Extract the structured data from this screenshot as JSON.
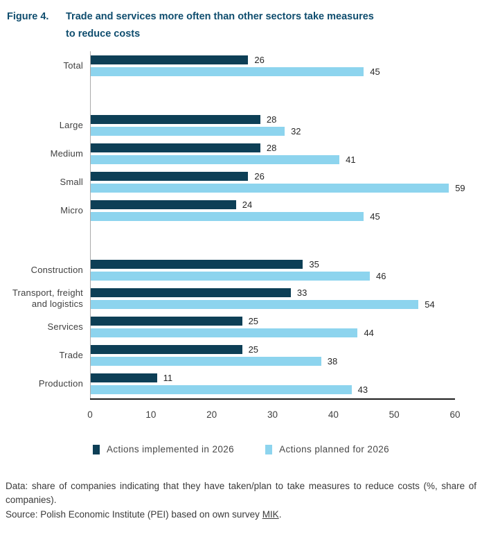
{
  "figure": {
    "label": "Figure 4.",
    "title_line1": "Trade and services more often than other sectors take measures",
    "title_line2": "to reduce costs"
  },
  "chart_data": {
    "type": "bar",
    "orientation": "horizontal",
    "title": "Trade and services more often than other sectors take measures to reduce costs",
    "xlabel": "",
    "ylabel": "",
    "xlim": [
      0,
      60
    ],
    "xticks": [
      0,
      10,
      20,
      30,
      40,
      50,
      60
    ],
    "grid": false,
    "legend_position": "bottom",
    "categories": [
      "Total",
      "Large",
      "Medium",
      "Small",
      "Micro",
      "Construction",
      "Transport, freight and logistics",
      "Services",
      "Trade",
      "Production"
    ],
    "groups": [
      [
        0
      ],
      [
        1,
        2,
        3,
        4
      ],
      [
        5,
        6,
        7,
        8,
        9
      ]
    ],
    "series": [
      {
        "name": "Actions implemented in 2026",
        "color": "#0d3f56",
        "values": [
          26,
          28,
          28,
          26,
          24,
          35,
          33,
          25,
          25,
          11
        ]
      },
      {
        "name": "Actions planned for 2026",
        "color": "#8dd4ee",
        "values": [
          45,
          32,
          41,
          59,
          45,
          46,
          54,
          44,
          38,
          43
        ]
      }
    ]
  },
  "colors": {
    "title": "#0f4d6e",
    "dark_series": "#0d3f56",
    "light_series": "#8dd4ee",
    "y_axis_line": "#a9a9a9",
    "x_axis_line": "#1d1d1d"
  },
  "legend": {
    "items": [
      {
        "label": "Actions implemented in 2026",
        "color": "#0d3f56"
      },
      {
        "label": "Actions planned for 2026",
        "color": "#8dd4ee"
      }
    ]
  },
  "footer": {
    "data_note": "Data: share of companies indicating that they have taken/plan to take measures to reduce costs (%, share of companies).",
    "source_prefix": "Source: Polish Economic Institute (PEI) based on own survey ",
    "source_link": "MIK",
    "source_suffix": "."
  }
}
